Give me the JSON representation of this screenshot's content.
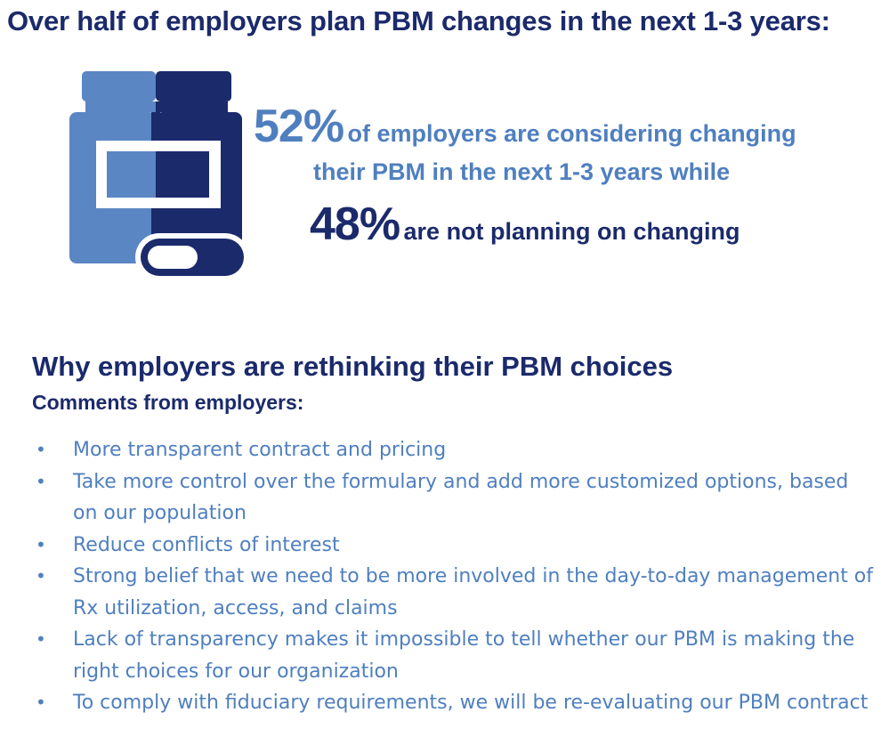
{
  "headline": "Over half of employers plan PBM changes in the next 1-3 years:",
  "icons": {
    "bottle": "pill-bottle-icon",
    "bullet": "bullet-dot"
  },
  "colors": {
    "dark_navy": "#1b2a6b",
    "light_blue": "#4f7fbf",
    "mid_blue": "#5a86c3"
  },
  "stats": {
    "considering_pct": "52%",
    "considering_text_line1": "of employers are considering changing",
    "considering_text_line2": "their PBM in the next 1-3 years while",
    "not_planning_pct": "48%",
    "not_planning_text": "are not planning on changing"
  },
  "section": {
    "title": "Why employers are rethinking their PBM choices",
    "subtitle": "Comments from employers:",
    "bullet_symbol": "•",
    "comments": [
      "More transparent contract and pricing",
      "Take more control over the formulary and add more customized options, based on our population",
      "Reduce conflicts of interest",
      "Strong belief that we need to be more involved in the day-to-day management of Rx utilization, access, and claims",
      "Lack of transparency makes it impossible to tell whether our PBM is making the right choices for our organization",
      "To comply with fiduciary requirements, we will be re-evaluating our PBM contract"
    ]
  }
}
